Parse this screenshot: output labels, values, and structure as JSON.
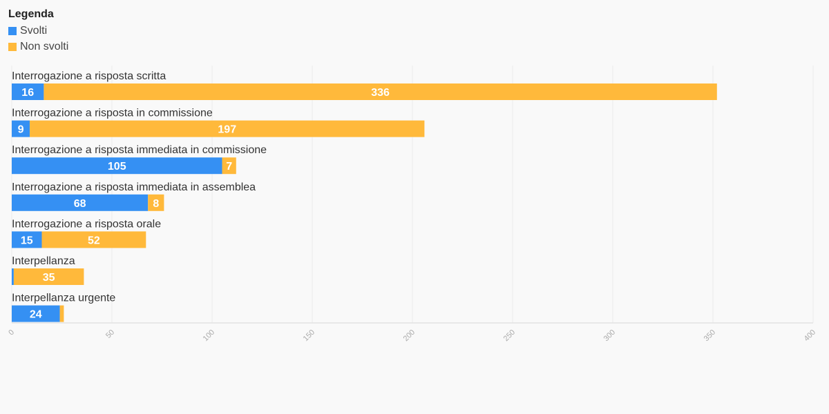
{
  "legend": {
    "title": "Legenda",
    "items": [
      {
        "label": "Svolti",
        "color": "#3590f3"
      },
      {
        "label": "Non svolti",
        "color": "#ffb93b"
      }
    ]
  },
  "chart_data": {
    "type": "bar",
    "orientation": "horizontal",
    "stacked": true,
    "categories": [
      "Interrogazione a risposta scritta",
      "Interrogazione a risposta in commissione",
      "Interrogazione a risposta immediata in commissione",
      "Interrogazione a risposta immediata in assemblea",
      "Interrogazione a risposta orale",
      "Interpellanza",
      "Interpellanza urgente"
    ],
    "series": [
      {
        "name": "Svolti",
        "color": "#3590f3",
        "values": [
          16,
          9,
          105,
          68,
          15,
          1,
          24
        ]
      },
      {
        "name": "Non svolti",
        "color": "#ffb93b",
        "values": [
          336,
          197,
          7,
          8,
          52,
          35,
          2
        ]
      }
    ],
    "xlim": [
      0,
      400
    ],
    "xticks": [
      0,
      50,
      100,
      150,
      200,
      250,
      300,
      350,
      400
    ],
    "grid": true,
    "legend_position": "top-left",
    "title": "",
    "xlabel": "",
    "ylabel": ""
  }
}
